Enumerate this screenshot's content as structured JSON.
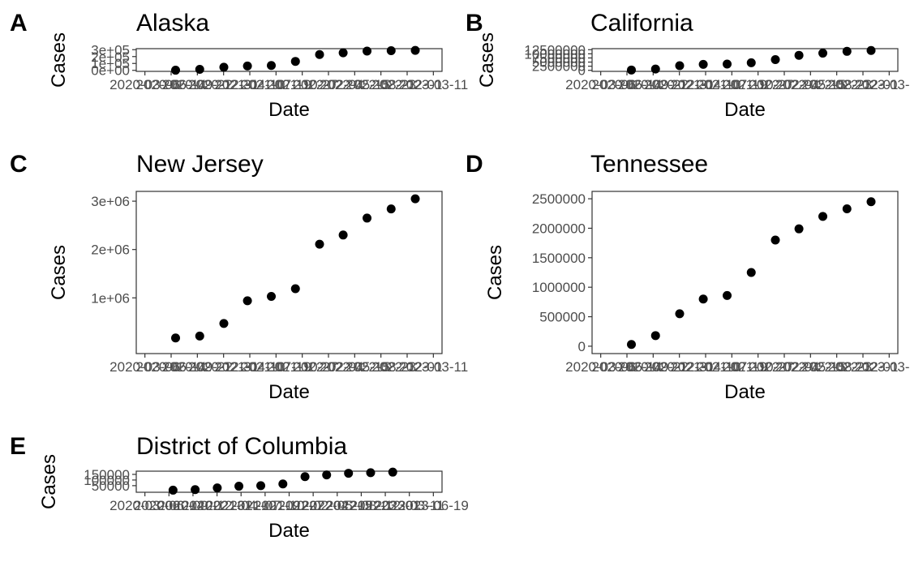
{
  "chart_data": [
    {
      "type": "scatter",
      "panel_label": "A",
      "title": "Alaska",
      "xlabel": "Date",
      "ylabel": "Cases",
      "x": [
        "2020-07-01",
        "2020-10-01",
        "2021-01-01",
        "2021-04-01",
        "2021-07-01",
        "2021-10-01",
        "2022-01-01",
        "2022-04-01",
        "2022-07-01",
        "2022-10-01",
        "2023-01-01"
      ],
      "y": [
        2000,
        15000,
        45000,
        63000,
        70000,
        130000,
        230000,
        255000,
        280000,
        285000,
        290000
      ],
      "xticks": [
        "2020-03-06",
        "2020-06-14",
        "2020-09-22",
        "2020-12-31",
        "2021-04-10",
        "2021-07-19",
        "2021-10-27",
        "2022-02-04",
        "2022-05-15",
        "2022-08-23",
        "2022-12-01",
        "2023-03-11"
      ],
      "yticks": [
        "0e+00",
        "1e+05",
        "2e+05",
        "3e+05"
      ],
      "ylim": [
        0,
        300000
      ],
      "grid": true
    },
    {
      "type": "scatter",
      "panel_label": "B",
      "title": "California",
      "xlabel": "Date",
      "ylabel": "Cases",
      "x": [
        "2020-07-01",
        "2020-10-01",
        "2021-01-01",
        "2021-04-01",
        "2021-07-01",
        "2021-10-01",
        "2022-01-01",
        "2022-04-01",
        "2022-07-01",
        "2022-10-01",
        "2023-01-01"
      ],
      "y": [
        200000,
        800000,
        2800000,
        3600000,
        3800000,
        4600000,
        6500000,
        9100000,
        10400000,
        11500000,
        12000000
      ],
      "xticks": [
        "2020-03-06",
        "2020-06-14",
        "2020-09-22",
        "2020-12-31",
        "2021-04-10",
        "2021-07-19",
        "2021-10-27",
        "2022-02-04",
        "2022-05-15",
        "2022-08-23",
        "2022-12-01",
        "2023-03-11"
      ],
      "yticks": [
        "0",
        "2500000",
        "5000000",
        "7500000",
        "10000000",
        "12500000"
      ],
      "ylim": [
        0,
        12500000
      ],
      "grid": true
    },
    {
      "type": "scatter",
      "panel_label": "C",
      "title": "New Jersey",
      "xlabel": "Date",
      "ylabel": "Cases",
      "x": [
        "2020-07-01",
        "2020-10-01",
        "2021-01-01",
        "2021-04-01",
        "2021-07-01",
        "2021-10-01",
        "2022-01-01",
        "2022-04-01",
        "2022-07-01",
        "2022-10-01",
        "2023-01-01"
      ],
      "y": [
        170000,
        210000,
        470000,
        940000,
        1030000,
        1190000,
        2110000,
        2300000,
        2650000,
        2840000,
        3050000
      ],
      "xticks": [
        "2020-03-06",
        "2020-06-14",
        "2020-09-22",
        "2020-12-31",
        "2021-04-10",
        "2021-07-19",
        "2021-10-27",
        "2022-02-04",
        "2022-05-15",
        "2022-08-23",
        "2022-12-01",
        "2023-03-11"
      ],
      "yticks": [
        "1e+06",
        "2e+06",
        "3e+06"
      ],
      "ylim": [
        0,
        3050000
      ],
      "grid": true
    },
    {
      "type": "scatter",
      "panel_label": "D",
      "title": "Tennessee",
      "xlabel": "Date",
      "ylabel": "Cases",
      "x": [
        "2020-07-01",
        "2020-10-01",
        "2021-01-01",
        "2021-04-01",
        "2021-07-01",
        "2021-10-01",
        "2022-01-01",
        "2022-04-01",
        "2022-07-01",
        "2022-10-01",
        "2023-01-01"
      ],
      "y": [
        30000,
        180000,
        550000,
        800000,
        860000,
        1250000,
        1800000,
        1990000,
        2200000,
        2330000,
        2450000
      ],
      "xticks": [
        "2020-03-06",
        "2020-06-14",
        "2020-09-22",
        "2020-12-31",
        "2021-04-10",
        "2021-07-19",
        "2021-10-27",
        "2022-02-04",
        "2022-05-15",
        "2022-08-23",
        "2022-12-01",
        "2023-03-11"
      ],
      "yticks": [
        "0",
        "500000",
        "1000000",
        "1500000",
        "2000000",
        "2500000"
      ],
      "ylim": [
        0,
        2500000
      ],
      "grid": true
    },
    {
      "type": "scatter",
      "panel_label": "E",
      "title": "District of Columbia",
      "xlabel": "Date",
      "ylabel": "Cases",
      "x": [
        "2020-07-01",
        "2020-10-01",
        "2021-01-01",
        "2021-04-01",
        "2021-07-01",
        "2021-10-01",
        "2022-01-01",
        "2022-04-01",
        "2022-07-01",
        "2022-10-01",
        "2023-01-01"
      ],
      "y": [
        10000,
        15000,
        30000,
        45000,
        50000,
        65000,
        130000,
        145000,
        160000,
        165000,
        170000
      ],
      "xticks": [
        "2020-03-06",
        "2020-06-14",
        "2020-09-22",
        "2020-12-31",
        "2021-04-10",
        "2021-07-19",
        "2021-10-27",
        "2022-02-04",
        "2022-05-15",
        "2022-08-23",
        "2022-12-01",
        "2023-03-11",
        "2023-06-19"
      ],
      "yticks": [
        "50000",
        "100000",
        "150000"
      ],
      "ylim": [
        0,
        170000
      ],
      "grid": true
    }
  ]
}
